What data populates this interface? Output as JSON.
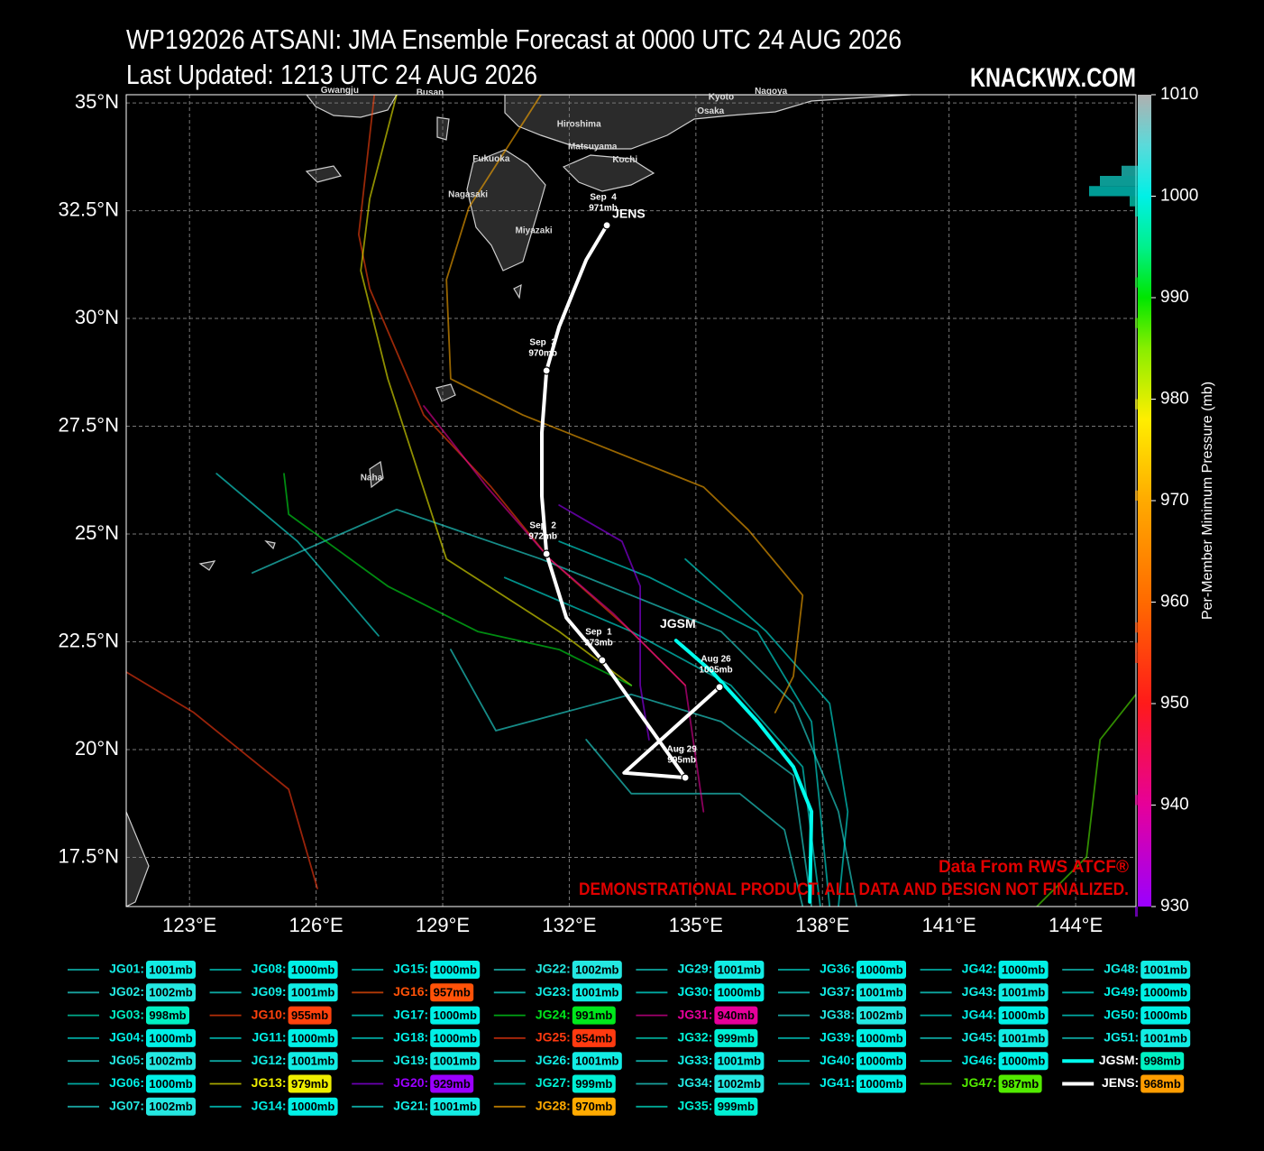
{
  "chart_data": {
    "type": "line",
    "title": "WP192026 ATSANI: JMA Ensemble Forecast at 0000 UTC 24 AUG 2026",
    "subtitle": "Last Updated: 1213 UTC 24 AUG 2026",
    "brand": "KNACKWX.COM",
    "credit": "Data From RWS ATCF®",
    "disclaimer": "DEMONSTRATIONAL PRODUCT. ALL DATA AND DESIGN NOT FINALIZED.",
    "xlim": [
      121.5,
      145.43
    ],
    "ylim": [
      16.36,
      35.19
    ],
    "xticks": [
      {
        "value": 123,
        "label": "123°E"
      },
      {
        "value": 126,
        "label": "126°E"
      },
      {
        "value": 129,
        "label": "129°E"
      },
      {
        "value": 132,
        "label": "132°E"
      },
      {
        "value": 135,
        "label": "135°E"
      },
      {
        "value": 138,
        "label": "138°E"
      },
      {
        "value": 141,
        "label": "141°E"
      },
      {
        "value": 144,
        "label": "144°E"
      }
    ],
    "yticks": [
      {
        "value": 17.5,
        "label": "17.5°N"
      },
      {
        "value": 20,
        "label": "20°N"
      },
      {
        "value": 22.5,
        "label": "22.5°N"
      },
      {
        "value": 25,
        "label": "25°N"
      },
      {
        "value": 27.5,
        "label": "27.5°N"
      },
      {
        "value": 30,
        "label": "30°N"
      },
      {
        "value": 32.5,
        "label": "32.5°N"
      },
      {
        "value": 35,
        "label": "35°N"
      }
    ],
    "grid": true,
    "colorbar": {
      "label": "Per-Member Minimum Pressure (mb)",
      "lim": [
        930,
        1010
      ],
      "ticks": [
        930,
        940,
        950,
        960,
        970,
        980,
        990,
        1000,
        1010
      ]
    },
    "colormap": [
      {
        "value": 930,
        "color": "#9a00ff"
      },
      {
        "value": 940,
        "color": "#e6009a"
      },
      {
        "value": 950,
        "color": "#ff1a1a"
      },
      {
        "value": 960,
        "color": "#ff6a00"
      },
      {
        "value": 970,
        "color": "#ffaa00"
      },
      {
        "value": 978,
        "color": "#ffee00"
      },
      {
        "value": 985,
        "color": "#88ee00"
      },
      {
        "value": 990,
        "color": "#00e600"
      },
      {
        "value": 995,
        "color": "#00f08c"
      },
      {
        "value": 1000,
        "color": "#00f0e6"
      },
      {
        "value": 1005,
        "color": "#5adada"
      },
      {
        "value": 1010,
        "color": "#b0b0b0"
      }
    ],
    "map_labels": [
      {
        "text": "Gwangju",
        "lon": 126.56,
        "lat": 35.29
      },
      {
        "text": "Busan",
        "lon": 128.7,
        "lat": 35.23
      },
      {
        "text": "Kyoto",
        "lon": 135.6,
        "lat": 35.13
      },
      {
        "text": "Nagoya",
        "lon": 136.78,
        "lat": 35.27
      },
      {
        "text": "Osaka",
        "lon": 135.35,
        "lat": 34.81
      },
      {
        "text": "Hiroshima",
        "lon": 132.23,
        "lat": 34.5
      },
      {
        "text": "Matsuyama",
        "lon": 132.55,
        "lat": 33.98
      },
      {
        "text": "Kochi",
        "lon": 133.32,
        "lat": 33.68
      },
      {
        "text": "Fukuoka",
        "lon": 130.15,
        "lat": 33.7
      },
      {
        "text": "Nagasaki",
        "lon": 129.6,
        "lat": 32.87
      },
      {
        "text": "Miyazaki",
        "lon": 131.16,
        "lat": 32.03
      },
      {
        "text": "Naha",
        "lon": 127.31,
        "lat": 26.3
      }
    ],
    "series": [
      {
        "name": "JG01:",
        "pressure": 1001,
        "pressure_label": "1001mb",
        "x": [
          123.64,
          125.56,
          127.48
        ],
        "values": [
          26.4,
          24.83,
          22.64
        ]
      },
      {
        "name": "JG02:",
        "pressure": 1002,
        "pressure_label": "1002mb",
        "x": [
          124.49,
          127.91,
          131.33,
          133.47,
          135.6,
          137.31,
          138.38,
          138.81
        ],
        "values": [
          24.1,
          25.57,
          24.42,
          23.58,
          22.74,
          21.07,
          18.56,
          16.36
        ]
      },
      {
        "name": "JG03:",
        "pressure": 998,
        "pressure_label": "998mb"
      },
      {
        "name": "JG04:",
        "pressure": 1000,
        "pressure_label": "1000mb",
        "x": [
          130.47,
          133.47,
          135.83,
          137.53,
          137.95
        ],
        "values": [
          23.99,
          22.74,
          21.49,
          19.6,
          16.36
        ]
      },
      {
        "name": "JG05:",
        "pressure": 1002,
        "pressure_label": "1002mb",
        "x": [
          129.19,
          130.26,
          133.47,
          135.6,
          137.31,
          137.74
        ],
        "values": [
          22.32,
          20.44,
          21.28,
          20.65,
          19.4,
          16.36
        ]
      },
      {
        "name": "JG06:",
        "pressure": 1000,
        "pressure_label": "1000mb",
        "x": [
          134.75,
          136.67,
          138.17,
          138.6,
          138.38
        ],
        "values": [
          24.42,
          22.74,
          21.07,
          18.56,
          16.36
        ]
      },
      {
        "name": "JG07:",
        "pressure": 1002,
        "pressure_label": "1002mb",
        "x": [
          132.4,
          133.47,
          136.04,
          137.1,
          137.53
        ],
        "values": [
          20.23,
          18.98,
          18.98,
          18.14,
          16.36
        ]
      },
      {
        "name": "JG08:",
        "pressure": 1000,
        "pressure_label": "1000mb",
        "x": [
          131.76,
          133.89,
          136.46,
          137.74,
          138.17
        ],
        "values": [
          24.83,
          24.0,
          22.74,
          20.65,
          16.36
        ]
      },
      {
        "name": "JG09:",
        "pressure": 1001,
        "pressure_label": "1001mb"
      },
      {
        "name": "JG10:",
        "pressure": 955,
        "pressure_label": "955mb",
        "x": [
          127.38,
          127.01,
          127.27,
          128.55,
          130.15,
          131.54,
          133.47,
          134.75
        ],
        "values": [
          35.19,
          31.95,
          30.69,
          27.76,
          26.09,
          24.42,
          22.74,
          21.49
        ]
      },
      {
        "name": "JG11:",
        "pressure": 1000,
        "pressure_label": "1000mb"
      },
      {
        "name": "JG12:",
        "pressure": 1001,
        "pressure_label": "1001mb"
      },
      {
        "name": "JG13:",
        "pressure": 979,
        "pressure_label": "979mb",
        "x": [
          127.91,
          127.27,
          127.06,
          127.7,
          129.09,
          131.76,
          133.47
        ],
        "values": [
          35.19,
          32.78,
          31.11,
          28.6,
          24.42,
          22.74,
          21.49
        ]
      },
      {
        "name": "JG14:",
        "pressure": 1000,
        "pressure_label": "1000mb"
      },
      {
        "name": "JG15:",
        "pressure": 1000,
        "pressure_label": "1000mb"
      },
      {
        "name": "JG16:",
        "pressure": 957,
        "pressure_label": "957mb"
      },
      {
        "name": "JG17:",
        "pressure": 1000,
        "pressure_label": "1000mb"
      },
      {
        "name": "JG18:",
        "pressure": 1000,
        "pressure_label": "1000mb"
      },
      {
        "name": "JG19:",
        "pressure": 1001,
        "pressure_label": "1001mb"
      },
      {
        "name": "JG20:",
        "pressure": 929,
        "pressure_label": "929mb",
        "x": [
          131.76,
          133.25,
          133.68,
          133.68,
          133.89
        ],
        "values": [
          25.67,
          24.83,
          23.79,
          21.49,
          20.23
        ]
      },
      {
        "name": "JG21:",
        "pressure": 1001,
        "pressure_label": "1001mb"
      },
      {
        "name": "JG22:",
        "pressure": 1002,
        "pressure_label": "1002mb"
      },
      {
        "name": "JG23:",
        "pressure": 1001,
        "pressure_label": "1001mb"
      },
      {
        "name": "JG24:",
        "pressure": 991,
        "pressure_label": "991mb",
        "x": [
          125.24,
          125.35,
          127.7,
          129.83,
          131.76,
          133.47
        ],
        "values": [
          26.4,
          25.46,
          23.79,
          22.74,
          22.32,
          21.49
        ]
      },
      {
        "name": "JG25:",
        "pressure": 954,
        "pressure_label": "954mb",
        "x": [
          121.5,
          123.1,
          125.35,
          126.03
        ],
        "values": [
          21.8,
          20.86,
          19.08,
          16.78
        ]
      },
      {
        "name": "JG26:",
        "pressure": 1001,
        "pressure_label": "1001mb"
      },
      {
        "name": "JG27:",
        "pressure": 999,
        "pressure_label": "999mb"
      },
      {
        "name": "JG28:",
        "pressure": 970,
        "pressure_label": "970mb",
        "x": [
          131.33,
          129.62,
          129.09,
          129.19,
          130.9,
          135.18,
          136.24,
          137.53,
          137.31,
          136.88
        ],
        "values": [
          35.19,
          32.57,
          30.9,
          28.6,
          27.76,
          26.09,
          25.1,
          23.58,
          21.7,
          20.86
        ]
      },
      {
        "name": "JG29:",
        "pressure": 1001,
        "pressure_label": "1001mb"
      },
      {
        "name": "JG30:",
        "pressure": 1000,
        "pressure_label": "1000mb"
      },
      {
        "name": "JG31:",
        "pressure": 940,
        "pressure_label": "940mb",
        "x": [
          128.55,
          130.05,
          131.54,
          133.04,
          134.75,
          135.18
        ],
        "values": [
          27.97,
          26.09,
          24.42,
          23.16,
          21.49,
          18.56
        ]
      },
      {
        "name": "JG32:",
        "pressure": 999,
        "pressure_label": "999mb"
      },
      {
        "name": "JG33:",
        "pressure": 1001,
        "pressure_label": "1001mb"
      },
      {
        "name": "JG34:",
        "pressure": 1002,
        "pressure_label": "1002mb"
      },
      {
        "name": "JG35:",
        "pressure": 999,
        "pressure_label": "999mb"
      },
      {
        "name": "JG36:",
        "pressure": 1000,
        "pressure_label": "1000mb"
      },
      {
        "name": "JG37:",
        "pressure": 1001,
        "pressure_label": "1001mb"
      },
      {
        "name": "JG38:",
        "pressure": 1002,
        "pressure_label": "1002mb"
      },
      {
        "name": "JG39:",
        "pressure": 1000,
        "pressure_label": "1000mb"
      },
      {
        "name": "JG40:",
        "pressure": 1000,
        "pressure_label": "1000mb"
      },
      {
        "name": "JG41:",
        "pressure": 1000,
        "pressure_label": "1000mb"
      },
      {
        "name": "JG42:",
        "pressure": 1000,
        "pressure_label": "1000mb"
      },
      {
        "name": "JG43:",
        "pressure": 1001,
        "pressure_label": "1001mb"
      },
      {
        "name": "JG44:",
        "pressure": 1000,
        "pressure_label": "1000mb"
      },
      {
        "name": "JG45:",
        "pressure": 1001,
        "pressure_label": "1001mb"
      },
      {
        "name": "JG46:",
        "pressure": 1000,
        "pressure_label": "1000mb"
      },
      {
        "name": "JG47:",
        "pressure": 987,
        "pressure_label": "987mb",
        "x": [
          145.43,
          144.58,
          144.26,
          143.08
        ],
        "values": [
          21.28,
          20.23,
          17.51,
          16.36
        ]
      },
      {
        "name": "JG48:",
        "pressure": 1001,
        "pressure_label": "1001mb"
      },
      {
        "name": "JG49:",
        "pressure": 1000,
        "pressure_label": "1000mb"
      },
      {
        "name": "JG50:",
        "pressure": 1000,
        "pressure_label": "1000mb"
      },
      {
        "name": "JG51:",
        "pressure": 1001,
        "pressure_label": "1001mb"
      },
      {
        "name": "JGSM:",
        "pressure": 998,
        "pressure_label": "998mb",
        "color": "#00ffee",
        "track_label": "JGSM",
        "x": [
          134.53,
          135.39,
          136.46,
          137.31,
          137.74,
          137.7
        ],
        "values": [
          22.53,
          21.8,
          20.65,
          19.6,
          18.56,
          16.47
        ]
      },
      {
        "name": "JENS:",
        "pressure": 968,
        "pressure_label": "968mb",
        "color": "#ffffff",
        "track_label": "JENS",
        "x": [
          135.56,
          133.3,
          134.75,
          132.78,
          131.93,
          131.46,
          131.35,
          131.35,
          131.46,
          131.76,
          132.4,
          132.89
        ],
        "values": [
          21.45,
          19.46,
          19.35,
          22.07,
          23.06,
          24.54,
          25.88,
          27.35,
          28.79,
          29.81,
          31.36,
          32.16
        ],
        "point_dates": [
          "Aug 26",
          null,
          "Aug 29",
          "Sep  1",
          null,
          "Sep  2",
          null,
          null,
          "Sep  3",
          null,
          null,
          "Sep  4"
        ],
        "point_pressures": [
          "1005mb",
          null,
          "995mb",
          "973mb",
          null,
          "972mb",
          null,
          null,
          "970mb",
          null,
          null,
          "971mb"
        ]
      }
    ]
  }
}
